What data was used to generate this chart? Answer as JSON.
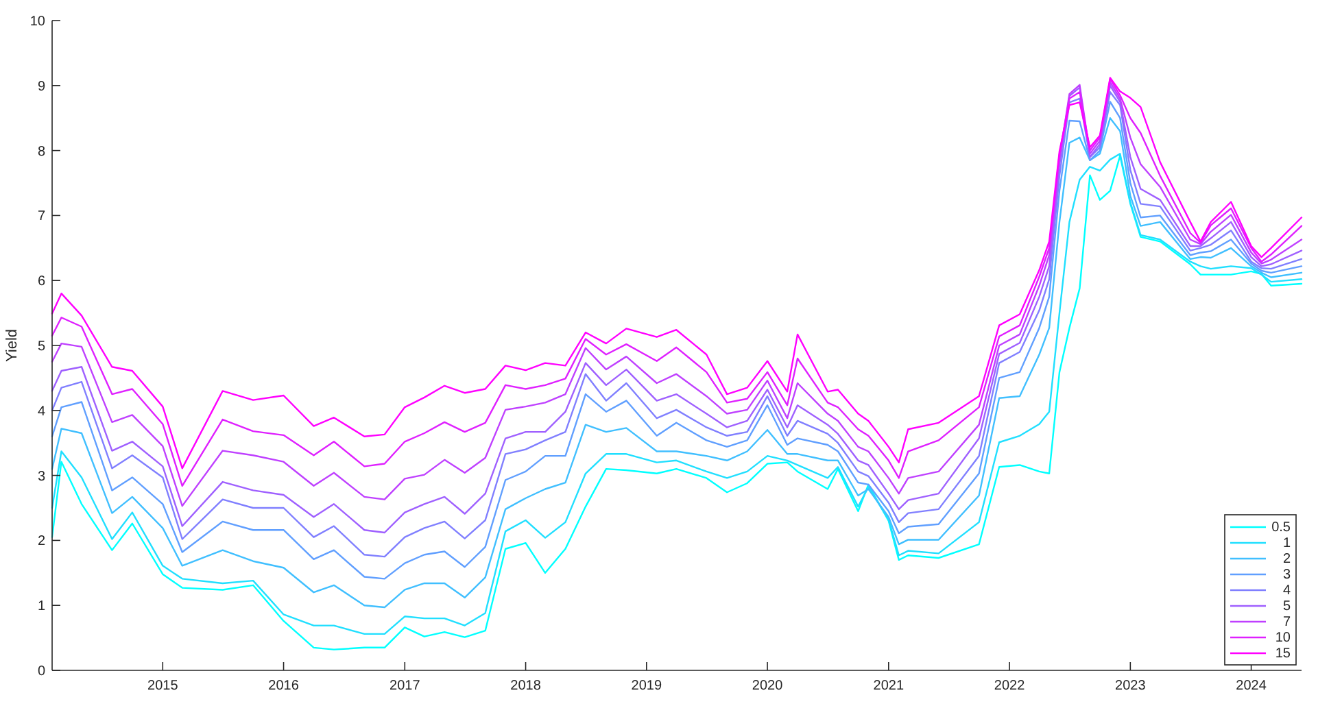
{
  "chart_data": {
    "type": "line",
    "ylabel": "Yield",
    "ylim": [
      0,
      10
    ],
    "yticks": [
      0,
      1,
      2,
      3,
      4,
      5,
      6,
      7,
      8,
      9,
      10
    ],
    "xlim": [
      "2014-02",
      "2024-06"
    ],
    "xticks": [
      "2015",
      "2016",
      "2017",
      "2018",
      "2019",
      "2020",
      "2021",
      "2022",
      "2023",
      "2024"
    ],
    "grid": false,
    "legend": "bottom right",
    "marker": "none",
    "line_style": "solid",
    "x": [
      "2014-02",
      "2014-03",
      "2014-05",
      "2014-08",
      "2014-10",
      "2015-01",
      "2015-03",
      "2015-07",
      "2015-10",
      "2016-01",
      "2016-04",
      "2016-06",
      "2016-09",
      "2016-11",
      "2017-01",
      "2017-03",
      "2017-05",
      "2017-07",
      "2017-09",
      "2017-11",
      "2018-01",
      "2018-03",
      "2018-05",
      "2018-07",
      "2018-09",
      "2018-11",
      "2019-02",
      "2019-04",
      "2019-07",
      "2019-09",
      "2019-11",
      "2020-01",
      "2020-03",
      "2020-04",
      "2020-07",
      "2020-08",
      "2020-10",
      "2020-11",
      "2021-01",
      "2021-02",
      "2021-03",
      "2021-06",
      "2021-10",
      "2021-12",
      "2022-02",
      "2022-04",
      "2022-05",
      "2022-06",
      "2022-07",
      "2022-08",
      "2022-09",
      "2022-10",
      "2022-11",
      "2022-12",
      "2023-01",
      "2023-02",
      "2023-04",
      "2023-07",
      "2023-08",
      "2023-09",
      "2023-11",
      "2024-01",
      "2024-02",
      "2024-03",
      "2024-06"
    ],
    "series": [
      {
        "name": "0.5",
        "color": "#00ffff",
        "values": [
          2.05,
          3.21,
          2.56,
          1.85,
          2.26,
          1.48,
          1.27,
          1.24,
          1.31,
          0.76,
          0.35,
          0.32,
          0.35,
          0.35,
          0.66,
          0.52,
          0.59,
          0.51,
          0.61,
          1.87,
          1.96,
          1.5,
          1.87,
          2.52,
          3.1,
          3.08,
          3.03,
          3.1,
          2.96,
          2.74,
          2.88,
          3.18,
          3.2,
          3.06,
          2.79,
          3.1,
          2.45,
          2.86,
          2.3,
          1.7,
          1.77,
          1.73,
          1.94,
          3.13,
          3.16,
          3.06,
          3.03,
          4.59,
          5.27,
          5.88,
          7.62,
          7.24,
          7.38,
          7.92,
          7.18,
          6.67,
          6.6,
          6.25,
          6.09,
          6.09,
          6.09,
          6.14,
          6.1,
          5.92,
          5.95
        ]
      },
      {
        "name": "1",
        "color": "#20dfff",
        "values": [
          2.5,
          3.37,
          2.97,
          2.02,
          2.43,
          1.61,
          1.41,
          1.34,
          1.38,
          0.86,
          0.69,
          0.69,
          0.56,
          0.56,
          0.83,
          0.8,
          0.8,
          0.69,
          0.88,
          2.14,
          2.31,
          2.04,
          2.28,
          3.03,
          3.33,
          3.33,
          3.2,
          3.23,
          3.06,
          2.96,
          3.06,
          3.3,
          3.23,
          3.16,
          2.96,
          3.13,
          2.52,
          2.82,
          2.32,
          1.77,
          1.84,
          1.8,
          2.28,
          3.51,
          3.61,
          3.79,
          3.98,
          5.5,
          6.9,
          7.55,
          7.75,
          7.69,
          7.86,
          7.95,
          7.2,
          6.7,
          6.63,
          6.29,
          6.22,
          6.18,
          6.22,
          6.19,
          6.09,
          5.98,
          6.02
        ]
      },
      {
        "name": "2",
        "color": "#40bfff",
        "values": [
          3.1,
          3.72,
          3.65,
          2.42,
          2.67,
          2.19,
          1.61,
          1.85,
          1.68,
          1.58,
          1.2,
          1.31,
          1.0,
          0.97,
          1.24,
          1.34,
          1.34,
          1.12,
          1.43,
          2.48,
          2.65,
          2.79,
          2.89,
          3.78,
          3.67,
          3.73,
          3.37,
          3.37,
          3.3,
          3.23,
          3.37,
          3.7,
          3.33,
          3.33,
          3.23,
          3.23,
          2.69,
          2.79,
          2.36,
          1.94,
          2.01,
          2.01,
          2.69,
          4.19,
          4.22,
          4.86,
          5.27,
          6.9,
          8.12,
          8.2,
          7.85,
          7.95,
          8.5,
          8.3,
          7.3,
          6.84,
          6.9,
          6.33,
          6.36,
          6.35,
          6.5,
          6.22,
          6.12,
          6.05,
          6.12
        ]
      },
      {
        "name": "3",
        "color": "#609fff",
        "values": [
          3.6,
          4.05,
          4.13,
          2.77,
          2.97,
          2.56,
          1.82,
          2.29,
          2.16,
          2.16,
          1.71,
          1.85,
          1.44,
          1.41,
          1.65,
          1.78,
          1.83,
          1.59,
          1.9,
          2.93,
          3.06,
          3.3,
          3.3,
          4.25,
          3.98,
          4.15,
          3.61,
          3.81,
          3.54,
          3.44,
          3.54,
          4.08,
          3.47,
          3.57,
          3.47,
          3.37,
          2.89,
          2.86,
          2.45,
          2.11,
          2.21,
          2.25,
          3.03,
          4.5,
          4.59,
          5.27,
          5.75,
          7.38,
          8.46,
          8.45,
          7.85,
          8.0,
          8.75,
          8.5,
          7.5,
          6.97,
          7.0,
          6.39,
          6.43,
          6.45,
          6.63,
          6.26,
          6.15,
          6.12,
          6.22
        ]
      },
      {
        "name": "4",
        "color": "#807fff",
        "values": [
          4.0,
          4.35,
          4.44,
          3.11,
          3.31,
          2.97,
          2.02,
          2.63,
          2.5,
          2.5,
          2.05,
          2.22,
          1.78,
          1.75,
          2.05,
          2.19,
          2.29,
          2.03,
          2.31,
          3.33,
          3.4,
          3.54,
          3.67,
          4.56,
          4.15,
          4.42,
          3.88,
          4.01,
          3.74,
          3.61,
          3.67,
          4.22,
          3.61,
          3.84,
          3.64,
          3.5,
          3.06,
          2.99,
          2.58,
          2.28,
          2.42,
          2.48,
          3.3,
          4.73,
          4.9,
          5.54,
          6.02,
          7.61,
          8.74,
          8.8,
          7.9,
          8.05,
          8.9,
          8.7,
          7.7,
          7.18,
          7.14,
          6.46,
          6.5,
          6.55,
          6.77,
          6.29,
          6.19,
          6.18,
          6.33
        ]
      },
      {
        "name": "5",
        "color": "#9f60ff",
        "values": [
          4.3,
          4.61,
          4.67,
          3.38,
          3.52,
          3.14,
          2.22,
          2.9,
          2.77,
          2.7,
          2.36,
          2.56,
          2.16,
          2.12,
          2.43,
          2.56,
          2.67,
          2.41,
          2.72,
          3.57,
          3.67,
          3.67,
          3.98,
          4.73,
          4.39,
          4.63,
          4.15,
          4.25,
          3.95,
          3.74,
          3.84,
          4.32,
          3.74,
          4.08,
          3.78,
          3.64,
          3.23,
          3.16,
          2.72,
          2.48,
          2.62,
          2.72,
          3.57,
          4.87,
          5.04,
          5.75,
          6.22,
          7.78,
          8.84,
          8.97,
          7.9,
          8.1,
          9.0,
          8.75,
          7.9,
          7.41,
          7.24,
          6.53,
          6.53,
          6.65,
          6.9,
          6.36,
          6.22,
          6.25,
          6.46
        ]
      },
      {
        "name": "7",
        "color": "#bf40ff",
        "values": [
          4.75,
          5.03,
          4.98,
          3.82,
          3.93,
          3.45,
          2.53,
          3.38,
          3.31,
          3.21,
          2.84,
          3.04,
          2.67,
          2.63,
          2.95,
          3.01,
          3.24,
          3.04,
          3.27,
          4.01,
          4.06,
          4.12,
          4.25,
          4.96,
          4.63,
          4.83,
          4.42,
          4.56,
          4.22,
          3.95,
          4.01,
          4.46,
          3.88,
          4.42,
          3.95,
          3.84,
          3.44,
          3.37,
          2.96,
          2.72,
          2.96,
          3.06,
          3.78,
          5.0,
          5.17,
          5.92,
          6.39,
          7.88,
          8.87,
          9.01,
          7.95,
          8.15,
          9.05,
          8.8,
          8.2,
          7.79,
          7.44,
          6.63,
          6.56,
          6.75,
          7.01,
          6.43,
          6.26,
          6.32,
          6.63
        ]
      },
      {
        "name": "10",
        "color": "#df20ff",
        "values": [
          5.15,
          5.43,
          5.29,
          4.25,
          4.33,
          3.79,
          2.84,
          3.86,
          3.68,
          3.62,
          3.31,
          3.52,
          3.14,
          3.18,
          3.52,
          3.65,
          3.82,
          3.67,
          3.81,
          4.39,
          4.33,
          4.39,
          4.49,
          5.1,
          4.86,
          5.02,
          4.76,
          4.97,
          4.59,
          4.12,
          4.18,
          4.59,
          4.08,
          4.8,
          4.12,
          4.05,
          3.71,
          3.61,
          3.23,
          2.96,
          3.37,
          3.54,
          4.05,
          5.14,
          5.31,
          6.06,
          6.5,
          7.95,
          8.8,
          8.9,
          8.0,
          8.2,
          9.1,
          8.85,
          8.5,
          8.27,
          7.61,
          6.73,
          6.58,
          6.85,
          7.11,
          6.5,
          6.29,
          6.4,
          6.84
        ]
      },
      {
        "name": "15",
        "color": "#ff00ff",
        "values": [
          5.49,
          5.8,
          5.46,
          4.67,
          4.61,
          4.06,
          3.11,
          4.3,
          4.16,
          4.23,
          3.76,
          3.89,
          3.6,
          3.63,
          4.05,
          4.2,
          4.38,
          4.27,
          4.33,
          4.69,
          4.62,
          4.73,
          4.69,
          5.2,
          5.03,
          5.26,
          5.13,
          5.24,
          4.86,
          4.25,
          4.35,
          4.76,
          4.29,
          5.17,
          4.29,
          4.32,
          3.95,
          3.84,
          3.44,
          3.2,
          3.71,
          3.81,
          4.22,
          5.31,
          5.48,
          6.16,
          6.6,
          7.99,
          8.7,
          8.74,
          8.05,
          8.23,
          9.12,
          8.91,
          8.81,
          8.67,
          7.82,
          6.9,
          6.6,
          6.9,
          7.21,
          6.53,
          6.36,
          6.5,
          6.97
        ]
      }
    ]
  }
}
